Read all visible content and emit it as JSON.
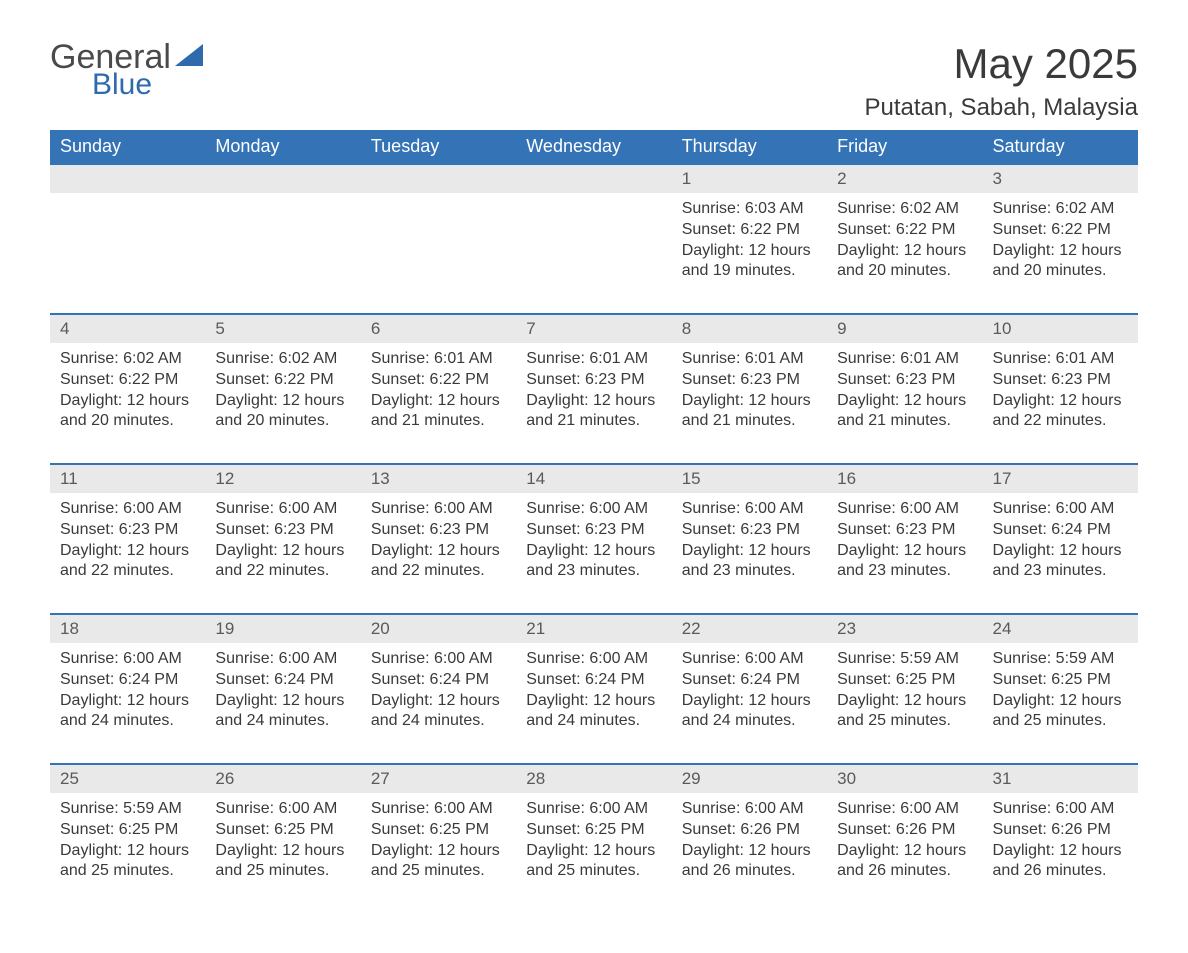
{
  "logo": {
    "word1": "General",
    "word2": "Blue"
  },
  "title": "May 2025",
  "location": "Putatan, Sabah, Malaysia",
  "colors": {
    "header_bg": "#3373b6",
    "header_text": "#ffffff",
    "daynum_bg": "#e9e9e9",
    "daynum_text": "#5a5a5a",
    "row_border": "#3373b6",
    "body_text": "#3a3a3a",
    "page_bg": "#ffffff",
    "logo_blue": "#2f6aad"
  },
  "typography": {
    "title_fontsize": 42,
    "location_fontsize": 24,
    "header_fontsize": 18,
    "daynum_fontsize": 17,
    "body_fontsize": 16
  },
  "layout": {
    "columns": 7,
    "rows_of_weeks": 5,
    "first_day_column_index": 4
  },
  "days_of_week": [
    "Sunday",
    "Monday",
    "Tuesday",
    "Wednesday",
    "Thursday",
    "Friday",
    "Saturday"
  ],
  "weeks": [
    [
      null,
      null,
      null,
      null,
      {
        "n": "1",
        "sunrise": "6:03 AM",
        "sunset": "6:22 PM",
        "daylight": "12 hours and 19 minutes."
      },
      {
        "n": "2",
        "sunrise": "6:02 AM",
        "sunset": "6:22 PM",
        "daylight": "12 hours and 20 minutes."
      },
      {
        "n": "3",
        "sunrise": "6:02 AM",
        "sunset": "6:22 PM",
        "daylight": "12 hours and 20 minutes."
      }
    ],
    [
      {
        "n": "4",
        "sunrise": "6:02 AM",
        "sunset": "6:22 PM",
        "daylight": "12 hours and 20 minutes."
      },
      {
        "n": "5",
        "sunrise": "6:02 AM",
        "sunset": "6:22 PM",
        "daylight": "12 hours and 20 minutes."
      },
      {
        "n": "6",
        "sunrise": "6:01 AM",
        "sunset": "6:22 PM",
        "daylight": "12 hours and 21 minutes."
      },
      {
        "n": "7",
        "sunrise": "6:01 AM",
        "sunset": "6:23 PM",
        "daylight": "12 hours and 21 minutes."
      },
      {
        "n": "8",
        "sunrise": "6:01 AM",
        "sunset": "6:23 PM",
        "daylight": "12 hours and 21 minutes."
      },
      {
        "n": "9",
        "sunrise": "6:01 AM",
        "sunset": "6:23 PM",
        "daylight": "12 hours and 21 minutes."
      },
      {
        "n": "10",
        "sunrise": "6:01 AM",
        "sunset": "6:23 PM",
        "daylight": "12 hours and 22 minutes."
      }
    ],
    [
      {
        "n": "11",
        "sunrise": "6:00 AM",
        "sunset": "6:23 PM",
        "daylight": "12 hours and 22 minutes."
      },
      {
        "n": "12",
        "sunrise": "6:00 AM",
        "sunset": "6:23 PM",
        "daylight": "12 hours and 22 minutes."
      },
      {
        "n": "13",
        "sunrise": "6:00 AM",
        "sunset": "6:23 PM",
        "daylight": "12 hours and 22 minutes."
      },
      {
        "n": "14",
        "sunrise": "6:00 AM",
        "sunset": "6:23 PM",
        "daylight": "12 hours and 23 minutes."
      },
      {
        "n": "15",
        "sunrise": "6:00 AM",
        "sunset": "6:23 PM",
        "daylight": "12 hours and 23 minutes."
      },
      {
        "n": "16",
        "sunrise": "6:00 AM",
        "sunset": "6:23 PM",
        "daylight": "12 hours and 23 minutes."
      },
      {
        "n": "17",
        "sunrise": "6:00 AM",
        "sunset": "6:24 PM",
        "daylight": "12 hours and 23 minutes."
      }
    ],
    [
      {
        "n": "18",
        "sunrise": "6:00 AM",
        "sunset": "6:24 PM",
        "daylight": "12 hours and 24 minutes."
      },
      {
        "n": "19",
        "sunrise": "6:00 AM",
        "sunset": "6:24 PM",
        "daylight": "12 hours and 24 minutes."
      },
      {
        "n": "20",
        "sunrise": "6:00 AM",
        "sunset": "6:24 PM",
        "daylight": "12 hours and 24 minutes."
      },
      {
        "n": "21",
        "sunrise": "6:00 AM",
        "sunset": "6:24 PM",
        "daylight": "12 hours and 24 minutes."
      },
      {
        "n": "22",
        "sunrise": "6:00 AM",
        "sunset": "6:24 PM",
        "daylight": "12 hours and 24 minutes."
      },
      {
        "n": "23",
        "sunrise": "5:59 AM",
        "sunset": "6:25 PM",
        "daylight": "12 hours and 25 minutes."
      },
      {
        "n": "24",
        "sunrise": "5:59 AM",
        "sunset": "6:25 PM",
        "daylight": "12 hours and 25 minutes."
      }
    ],
    [
      {
        "n": "25",
        "sunrise": "5:59 AM",
        "sunset": "6:25 PM",
        "daylight": "12 hours and 25 minutes."
      },
      {
        "n": "26",
        "sunrise": "6:00 AM",
        "sunset": "6:25 PM",
        "daylight": "12 hours and 25 minutes."
      },
      {
        "n": "27",
        "sunrise": "6:00 AM",
        "sunset": "6:25 PM",
        "daylight": "12 hours and 25 minutes."
      },
      {
        "n": "28",
        "sunrise": "6:00 AM",
        "sunset": "6:25 PM",
        "daylight": "12 hours and 25 minutes."
      },
      {
        "n": "29",
        "sunrise": "6:00 AM",
        "sunset": "6:26 PM",
        "daylight": "12 hours and 26 minutes."
      },
      {
        "n": "30",
        "sunrise": "6:00 AM",
        "sunset": "6:26 PM",
        "daylight": "12 hours and 26 minutes."
      },
      {
        "n": "31",
        "sunrise": "6:00 AM",
        "sunset": "6:26 PM",
        "daylight": "12 hours and 26 minutes."
      }
    ]
  ],
  "labels": {
    "sunrise_prefix": "Sunrise: ",
    "sunset_prefix": "Sunset: ",
    "daylight_prefix": "Daylight: "
  }
}
